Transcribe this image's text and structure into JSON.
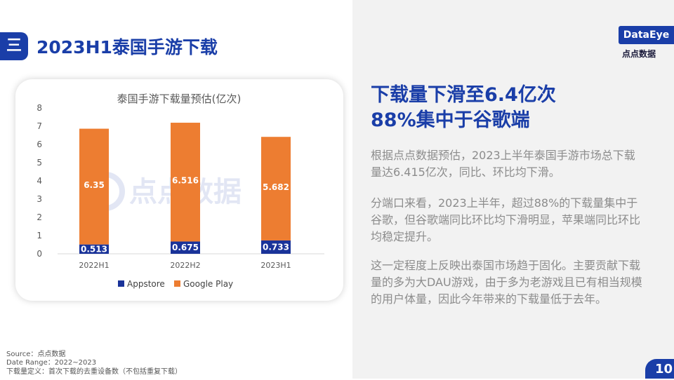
{
  "header": {
    "tab_icon": "三",
    "title": "2023H1泰国手游下载"
  },
  "logos": {
    "dataeye": "DataEye",
    "diandian": "点点数据"
  },
  "watermark": "点点数据",
  "headline": {
    "line1": "下载量下滑至6.4亿次",
    "line2": "88%集中于谷歌端"
  },
  "paragraphs": [
    "根据点点数据预估，2023上半年泰国手游市场总下载量达6.415亿次，同比、环比均下滑。",
    "分端口来看，2023上半年，超过88%的下载量集中于谷歌，但谷歌端同比环比均下滑明显，苹果端同比环比均稳定提升。",
    "这一定程度上反映出泰国市场趋于固化。主要贡献下载量的多为大DAU游戏，由于多为老游戏且已有相当规模的用户体量，因此今年带来的下载量低于去年。"
  ],
  "source": {
    "line1": "Source：点点数据",
    "line2": "Date Range：2022~2023",
    "line3": "下载量定义：首次下载的去重设备数（不包括重复下载）"
  },
  "page_number": "10",
  "chart_data": {
    "type": "bar",
    "stacked": true,
    "title": "泰国手游下载量预估(亿次)",
    "categories": [
      "2022H1",
      "2022H2",
      "2023H1"
    ],
    "series": [
      {
        "name": "Appstore",
        "values": [
          0.513,
          0.675,
          0.733
        ],
        "color": "#1a3399"
      },
      {
        "name": "Google Play",
        "values": [
          6.35,
          6.516,
          5.682
        ],
        "color": "#ed7d31"
      }
    ],
    "ylim": [
      0,
      8
    ],
    "yticks": [
      "0",
      "1",
      "2",
      "3",
      "4",
      "5",
      "6",
      "7",
      "8"
    ],
    "grid": false,
    "legend": "bottom"
  }
}
